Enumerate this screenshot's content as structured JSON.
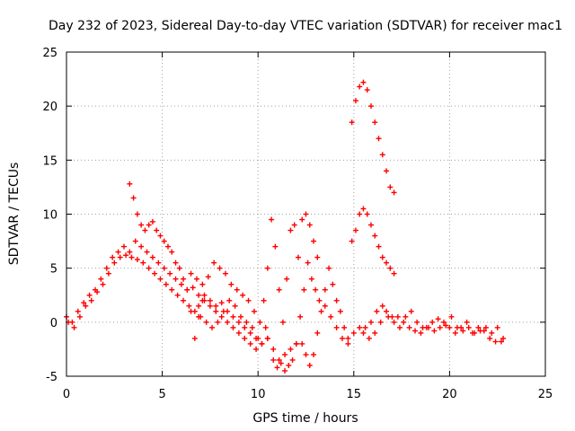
{
  "chart_data": {
    "type": "scatter",
    "title": "Day 232 of 2023, Sidereal Day-to-day VTEC variation (SDTVAR) for receiver mac1",
    "xlabel": "GPS time / hours",
    "ylabel": "SDTVAR / TECUs",
    "xlim": [
      0,
      25
    ],
    "ylim": [
      -5,
      25
    ],
    "xticks": [
      "0",
      "5",
      "10",
      "15",
      "20",
      "25"
    ],
    "yticks": [
      "-5",
      "0",
      "5",
      "10",
      "15",
      "20",
      "25"
    ],
    "grid": true,
    "marker": "+",
    "color": "#ff0000",
    "series": [
      {
        "name": "s1",
        "x": [
          0.0,
          0.3,
          0.6,
          0.9,
          1.2,
          1.5,
          1.8,
          2.1,
          2.4,
          2.7,
          3.0,
          3.3,
          3.6,
          3.9,
          4.2,
          4.5,
          4.8,
          5.1,
          5.4,
          5.7,
          6.0,
          6.3,
          6.6,
          6.9,
          7.2,
          7.5,
          7.8,
          8.1,
          8.4,
          8.7,
          9.0,
          9.3,
          9.6,
          9.9,
          10.2,
          10.5
        ],
        "y": [
          0.5,
          0.0,
          1.0,
          1.8,
          2.5,
          3.0,
          4.0,
          5.0,
          6.0,
          6.5,
          7.0,
          6.5,
          7.5,
          7.0,
          6.5,
          6.0,
          5.5,
          5.0,
          4.5,
          4.0,
          3.5,
          3.0,
          3.2,
          2.5,
          2.0,
          1.5,
          1.0,
          0.5,
          0.0,
          -0.5,
          -1.0,
          -1.5,
          -2.0,
          -2.5,
          -2.0,
          -1.5
        ]
      },
      {
        "name": "s2",
        "x": [
          0.1,
          0.4,
          0.7,
          1.0,
          1.3,
          1.6,
          1.9,
          2.2,
          2.5,
          2.8,
          3.1,
          3.4,
          3.7,
          4.0,
          4.3,
          4.6,
          4.9,
          5.2,
          5.5,
          5.8,
          6.1,
          6.4,
          6.7,
          7.0,
          7.3,
          7.6,
          7.9,
          8.2,
          8.5,
          8.8,
          9.1,
          9.4,
          9.7,
          10.0
        ],
        "y": [
          0.0,
          -0.5,
          0.5,
          1.5,
          2.0,
          2.8,
          3.5,
          4.5,
          5.5,
          6.0,
          6.2,
          6.0,
          5.8,
          5.5,
          5.0,
          4.5,
          4.0,
          3.5,
          3.0,
          2.5,
          2.0,
          1.5,
          1.0,
          0.5,
          0.0,
          -0.5,
          0.0,
          1.0,
          2.0,
          1.5,
          0.5,
          0.0,
          -0.5,
          -1.5
        ]
      },
      {
        "name": "s3",
        "x": [
          3.3,
          3.5,
          3.7,
          3.9,
          4.1,
          4.3,
          4.5,
          4.7,
          4.9,
          5.1,
          5.3,
          5.5,
          5.7,
          5.9,
          6.1,
          6.3,
          6.5,
          6.7,
          6.9,
          7.1
        ],
        "y": [
          12.8,
          11.5,
          10.0,
          9.0,
          8.5,
          9.0,
          9.3,
          8.5,
          8.0,
          7.5,
          7.0,
          6.5,
          5.5,
          5.0,
          4.0,
          3.0,
          1.0,
          -1.5,
          0.5,
          2.0
        ]
      },
      {
        "name": "s4",
        "x": [
          6.5,
          6.8,
          7.1,
          7.4,
          7.7,
          8.0,
          8.3,
          8.6,
          8.9,
          9.2,
          9.5,
          9.8,
          10.1,
          10.4
        ],
        "y": [
          4.5,
          4.0,
          3.5,
          4.2,
          5.5,
          5.0,
          4.5,
          3.5,
          3.0,
          2.5,
          2.0,
          1.0,
          0.0,
          -0.5
        ]
      },
      {
        "name": "s5",
        "x": [
          6.9,
          7.2,
          7.5,
          7.8,
          8.1,
          8.4,
          8.7,
          9.0,
          9.3,
          9.6,
          9.9,
          10.2,
          10.5,
          10.8,
          11.1,
          11.4,
          11.7,
          12.0
        ],
        "y": [
          1.5,
          2.5,
          2.0,
          1.5,
          1.8,
          1.0,
          0.5,
          0.0,
          -0.5,
          -1.0,
          -1.5,
          -2.0,
          -1.5,
          -2.5,
          -3.5,
          -3.0,
          -2.5,
          -2.0
        ]
      },
      {
        "name": "s6",
        "x": [
          10.3,
          10.5,
          10.7,
          10.9,
          11.1,
          11.3,
          11.5,
          11.7,
          11.9,
          12.1,
          12.3,
          12.5,
          12.7,
          12.9,
          13.1
        ],
        "y": [
          2.0,
          5.0,
          9.5,
          7.0,
          3.0,
          0.0,
          4.0,
          8.5,
          9.0,
          6.0,
          9.5,
          10.0,
          9.0,
          7.5,
          6.0
        ]
      },
      {
        "name": "s7",
        "x": [
          12.3,
          12.5,
          12.7,
          12.9,
          13.1,
          13.3,
          13.5,
          13.7,
          13.9,
          14.1,
          14.3,
          14.5,
          14.7
        ],
        "y": [
          -2.0,
          -3.0,
          -4.0,
          -3.0,
          -1.0,
          1.0,
          3.0,
          5.0,
          3.5,
          2.0,
          1.0,
          -0.5,
          -1.5
        ]
      },
      {
        "name": "s8",
        "x": [
          10.8,
          11.0,
          11.2,
          11.4,
          11.6,
          11.8,
          12.0,
          12.2,
          12.4,
          12.6,
          12.8,
          13.0,
          13.2
        ],
        "y": [
          -3.5,
          -4.2,
          -3.8,
          -4.5,
          -4.0,
          -3.5,
          -2.0,
          0.5,
          3.0,
          5.5,
          4.0,
          3.0,
          2.0
        ]
      },
      {
        "name": "s9",
        "x": [
          14.9,
          15.1,
          15.3,
          15.5,
          15.7,
          15.9,
          16.1,
          16.3,
          16.5,
          16.7,
          16.9,
          17.1
        ],
        "y": [
          18.5,
          20.5,
          21.8,
          22.2,
          21.5,
          20.0,
          18.5,
          17.0,
          15.5,
          14.0,
          12.5,
          12.0
        ]
      },
      {
        "name": "s10",
        "x": [
          14.9,
          15.1,
          15.3,
          15.5,
          15.7,
          15.9,
          16.1,
          16.3,
          16.5,
          16.7,
          16.9,
          17.1
        ],
        "y": [
          7.5,
          8.5,
          10.0,
          10.5,
          10.0,
          9.0,
          8.0,
          7.0,
          6.0,
          5.5,
          5.0,
          4.5
        ]
      },
      {
        "name": "s11",
        "x": [
          13.5,
          13.8,
          14.1,
          14.4,
          14.7,
          15.0,
          15.3,
          15.6,
          15.9,
          16.2,
          16.5,
          16.8,
          17.1,
          17.4,
          17.7,
          18.0,
          18.3,
          18.6,
          18.9,
          19.2,
          19.5,
          19.8,
          20.1,
          20.4,
          20.7,
          21.0,
          21.3,
          21.6,
          21.9,
          22.2,
          22.5,
          22.8
        ],
        "y": [
          1.5,
          0.5,
          -0.5,
          -1.5,
          -2.0,
          -1.0,
          -0.5,
          -0.5,
          0.0,
          1.0,
          1.5,
          0.5,
          0.0,
          -0.5,
          0.5,
          1.0,
          0.0,
          -0.5,
          -0.5,
          -0.8,
          -0.5,
          -0.3,
          0.5,
          -0.5,
          -0.8,
          -0.5,
          -1.0,
          -0.8,
          -0.5,
          -1.0,
          -0.5,
          -1.5
        ]
      },
      {
        "name": "s12",
        "x": [
          15.5,
          15.8,
          16.1,
          16.4,
          16.7,
          17.0,
          17.3,
          17.6,
          17.9,
          18.2,
          18.5,
          18.8,
          19.1,
          19.4,
          19.7,
          20.0,
          20.3,
          20.6,
          20.9,
          21.2,
          21.5,
          21.8,
          22.1,
          22.4,
          22.7
        ],
        "y": [
          -1.0,
          -1.5,
          -1.0,
          0.0,
          1.0,
          0.5,
          0.5,
          0.0,
          -0.5,
          -0.8,
          -1.0,
          -0.5,
          0.0,
          0.3,
          0.0,
          -0.5,
          -1.0,
          -0.5,
          0.0,
          -1.0,
          -0.5,
          -0.8,
          -1.5,
          -1.8,
          -1.8
        ]
      }
    ]
  }
}
